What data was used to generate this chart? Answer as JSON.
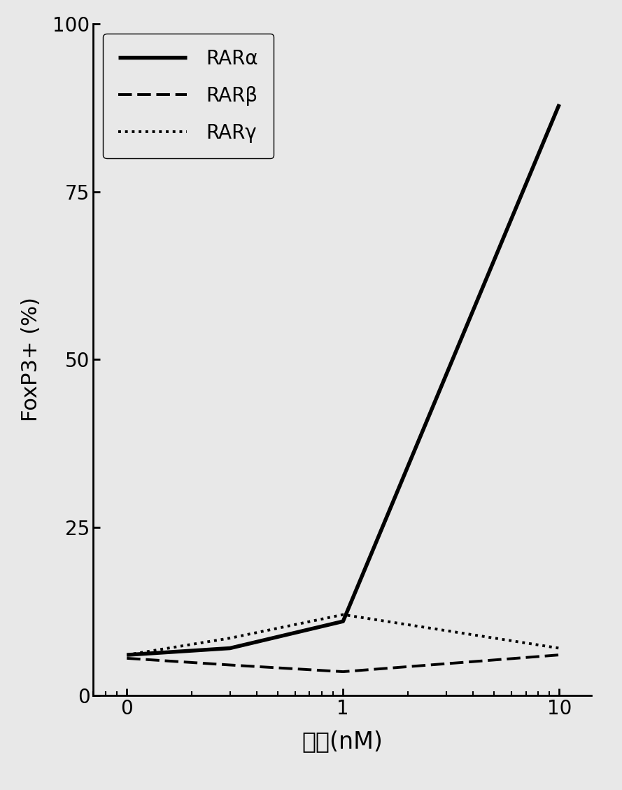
{
  "x_values": [
    0.1,
    0.3,
    1.0,
    10.0
  ],
  "RAR_alpha": [
    6.0,
    7.0,
    11.0,
    88.0
  ],
  "RAR_beta": [
    5.5,
    4.5,
    3.5,
    6.0
  ],
  "RAR_gamma": [
    6.0,
    8.5,
    12.0,
    7.0
  ],
  "xlabel": "浓度(nM)",
  "ylabel": "FoxP3+ (%)",
  "ylim": [
    0,
    100
  ],
  "yticks": [
    0,
    25,
    50,
    75,
    100
  ],
  "xtick_labels": [
    "0",
    "1",
    "10"
  ],
  "xtick_positions": [
    0.1,
    1.0,
    10.0
  ],
  "legend_labels": [
    "RARα",
    "RARβ",
    "RARγ"
  ],
  "line_color": "#000000",
  "background_color": "#e8e8e8",
  "title": "",
  "figsize": [
    8.89,
    11.28
  ],
  "dpi": 100
}
